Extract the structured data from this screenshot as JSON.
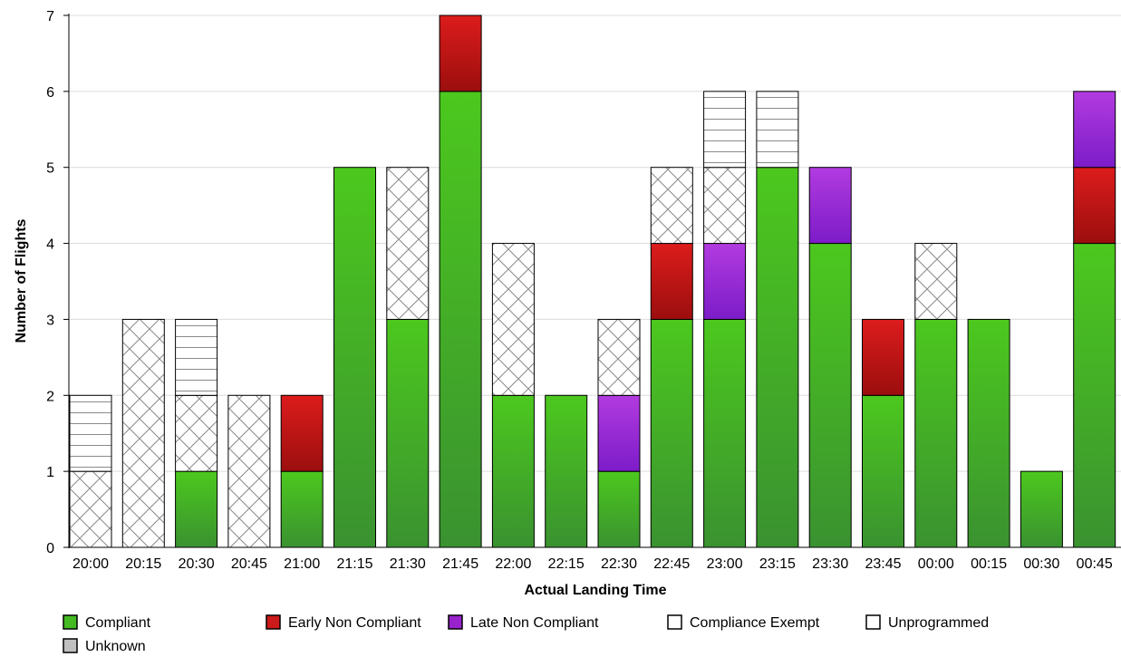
{
  "chart_data": {
    "type": "bar",
    "stacked": true,
    "xlabel": "Actual Landing Time",
    "ylabel": "Number of Flights",
    "ylim": [
      0,
      7
    ],
    "yticks": [
      0,
      1,
      2,
      3,
      4,
      5,
      6,
      7
    ],
    "grid": true,
    "legend_position": "bottom",
    "categories": [
      "20:00",
      "20:15",
      "20:30",
      "20:45",
      "21:00",
      "21:15",
      "21:30",
      "21:45",
      "22:00",
      "22:15",
      "22:30",
      "22:45",
      "23:00",
      "23:15",
      "23:30",
      "23:45",
      "00:00",
      "00:15",
      "00:30",
      "00:45"
    ],
    "series": [
      {
        "name": "Compliant",
        "color": "#44bb22",
        "pattern": "solid-green",
        "values": [
          0,
          0,
          1,
          0,
          1,
          5,
          3,
          6,
          2,
          2,
          1,
          3,
          3,
          5,
          4,
          2,
          3,
          3,
          1,
          4
        ]
      },
      {
        "name": "Early Non Compliant",
        "color": "#cc1a1a",
        "pattern": "solid-red",
        "values": [
          0,
          0,
          0,
          0,
          1,
          0,
          0,
          1,
          0,
          0,
          0,
          1,
          0,
          0,
          0,
          1,
          0,
          0,
          0,
          1
        ]
      },
      {
        "name": "Late Non Compliant",
        "color": "#9922cc",
        "pattern": "solid-purple",
        "values": [
          0,
          0,
          0,
          0,
          0,
          0,
          0,
          0,
          0,
          0,
          1,
          0,
          1,
          0,
          1,
          0,
          0,
          0,
          0,
          1
        ]
      },
      {
        "name": "Compliance Exempt",
        "color": "#ffffff",
        "pattern": "crosshatch",
        "values": [
          1,
          3,
          1,
          2,
          0,
          0,
          2,
          0,
          2,
          0,
          1,
          1,
          1,
          0,
          0,
          0,
          1,
          0,
          0,
          0
        ]
      },
      {
        "name": "Unprogrammed",
        "color": "#ffffff",
        "pattern": "horizontal-lines",
        "values": [
          1,
          0,
          1,
          0,
          0,
          0,
          0,
          0,
          0,
          0,
          0,
          0,
          1,
          1,
          0,
          0,
          0,
          0,
          0,
          0
        ]
      },
      {
        "name": "Unknown",
        "color": "#c0c0c0",
        "pattern": "solid-gray",
        "values": [
          0,
          0,
          0,
          0,
          0,
          0,
          0,
          0,
          0,
          0,
          0,
          0,
          0,
          0,
          0,
          0,
          0,
          0,
          0,
          0
        ]
      }
    ]
  }
}
